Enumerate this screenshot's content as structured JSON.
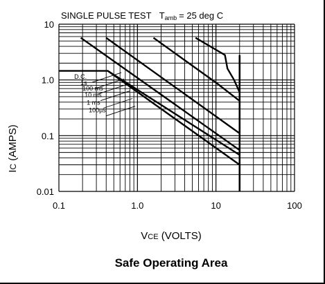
{
  "chart_data": {
    "type": "line",
    "scale": {
      "x": "log",
      "y": "log"
    },
    "xlim": [
      0.1,
      100
    ],
    "ylim": [
      0.01,
      10
    ],
    "grid": true,
    "x_ticks": [
      {
        "value": 0.1,
        "label": "0.1"
      },
      {
        "value": 1,
        "label": "1.0"
      },
      {
        "value": 10,
        "label": "10"
      },
      {
        "value": 100,
        "label": "100"
      }
    ],
    "y_ticks": [
      {
        "value": 0.01,
        "label": "0.01"
      },
      {
        "value": 0.1,
        "label": "0.1"
      },
      {
        "value": 1,
        "label": "1.0"
      },
      {
        "value": 10,
        "label": "10"
      }
    ],
    "title_parts": {
      "main": "SINGLE PULSE TEST",
      "t": "T",
      "amb": "amb",
      "cond": "= 25 deg C"
    },
    "ylabel_parts": {
      "main": "I",
      "sub": "C",
      "rest": " (AMPS)"
    },
    "xlabel_parts": {
      "main": "V",
      "sub": "CE",
      "rest": " (VOLTS)"
    },
    "caption": "Safe Operating Area",
    "series": [
      {
        "name": "D.C.",
        "points": [
          [
            0.1,
            1.45
          ],
          [
            0.42,
            1.45
          ],
          [
            20,
            0.03
          ]
        ]
      },
      {
        "name": "1s",
        "points": [
          [
            0.42,
            1.45
          ],
          [
            20,
            0.045
          ]
        ]
      },
      {
        "name": "100 ms",
        "points": [
          [
            0.19,
            5.7
          ],
          [
            20,
            0.055
          ]
        ]
      },
      {
        "name": "10 ms",
        "points": [
          [
            0.4,
            5.7
          ],
          [
            20,
            0.11
          ]
        ]
      },
      {
        "name": "1 ms",
        "points": [
          [
            1.6,
            5.7
          ],
          [
            10.4,
            0.86
          ],
          [
            20,
            0.42
          ]
        ]
      },
      {
        "name": "100µs",
        "points": [
          [
            5.5,
            5.7
          ],
          [
            13,
            2.8
          ],
          [
            14,
            1.6
          ],
          [
            17,
            1.0
          ],
          [
            20,
            0.6
          ]
        ]
      }
    ],
    "vce_limit": 20,
    "legend_x": 0.17,
    "legend_y": [
      0.96,
      0.74,
      0.59,
      0.45,
      0.33,
      0.24
    ]
  }
}
